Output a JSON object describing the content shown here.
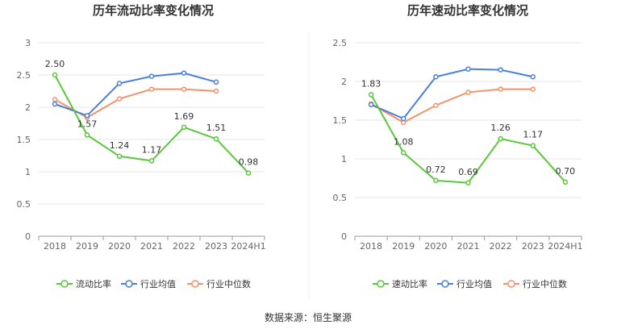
{
  "source": "数据来源：恒生聚源",
  "chart_data": [
    {
      "type": "line",
      "title": "历年流动比率变化情况",
      "categories": [
        "2018",
        "2019",
        "2020",
        "2021",
        "2022",
        "2023",
        "2024H1"
      ],
      "ylim": [
        0,
        3
      ],
      "yticks": [
        "0",
        "0.5",
        "1",
        "1.5",
        "2",
        "2.5",
        "3"
      ],
      "grid": true,
      "legend_position": "bottom",
      "series": [
        {
          "name": "流动比率",
          "color": "#5ac73c",
          "values": [
            2.5,
            1.57,
            1.24,
            1.17,
            1.69,
            1.51,
            0.98
          ],
          "labels": [
            "2.50",
            "1.57",
            "1.24",
            "1.17",
            "1.69",
            "1.51",
            "0.98"
          ]
        },
        {
          "name": "行业均值",
          "color": "#4a7fdc",
          "values": [
            2.05,
            1.87,
            2.37,
            2.48,
            2.53,
            2.39,
            null
          ]
        },
        {
          "name": "行业中位数",
          "color": "#f5916b",
          "values": [
            2.12,
            1.84,
            2.13,
            2.28,
            2.28,
            2.25,
            null
          ]
        }
      ]
    },
    {
      "type": "line",
      "title": "历年速动比率变化情况",
      "categories": [
        "2018",
        "2019",
        "2020",
        "2021",
        "2022",
        "2023",
        "2024H1"
      ],
      "ylim": [
        0,
        2.5
      ],
      "yticks": [
        "0",
        "0.5",
        "1",
        "1.5",
        "2",
        "2.5"
      ],
      "grid": true,
      "legend_position": "bottom",
      "series": [
        {
          "name": "速动比率",
          "color": "#5ac73c",
          "values": [
            1.83,
            1.08,
            0.72,
            0.69,
            1.26,
            1.17,
            0.7
          ],
          "labels": [
            "1.83",
            "1.08",
            "0.72",
            "0.69",
            "1.26",
            "1.17",
            "0.70"
          ]
        },
        {
          "name": "行业均值",
          "color": "#4a7fdc",
          "values": [
            1.7,
            1.52,
            2.06,
            2.16,
            2.15,
            2.06,
            null
          ]
        },
        {
          "name": "行业中位数",
          "color": "#f5916b",
          "values": [
            1.71,
            1.47,
            1.69,
            1.86,
            1.9,
            1.9,
            null
          ]
        }
      ]
    }
  ]
}
